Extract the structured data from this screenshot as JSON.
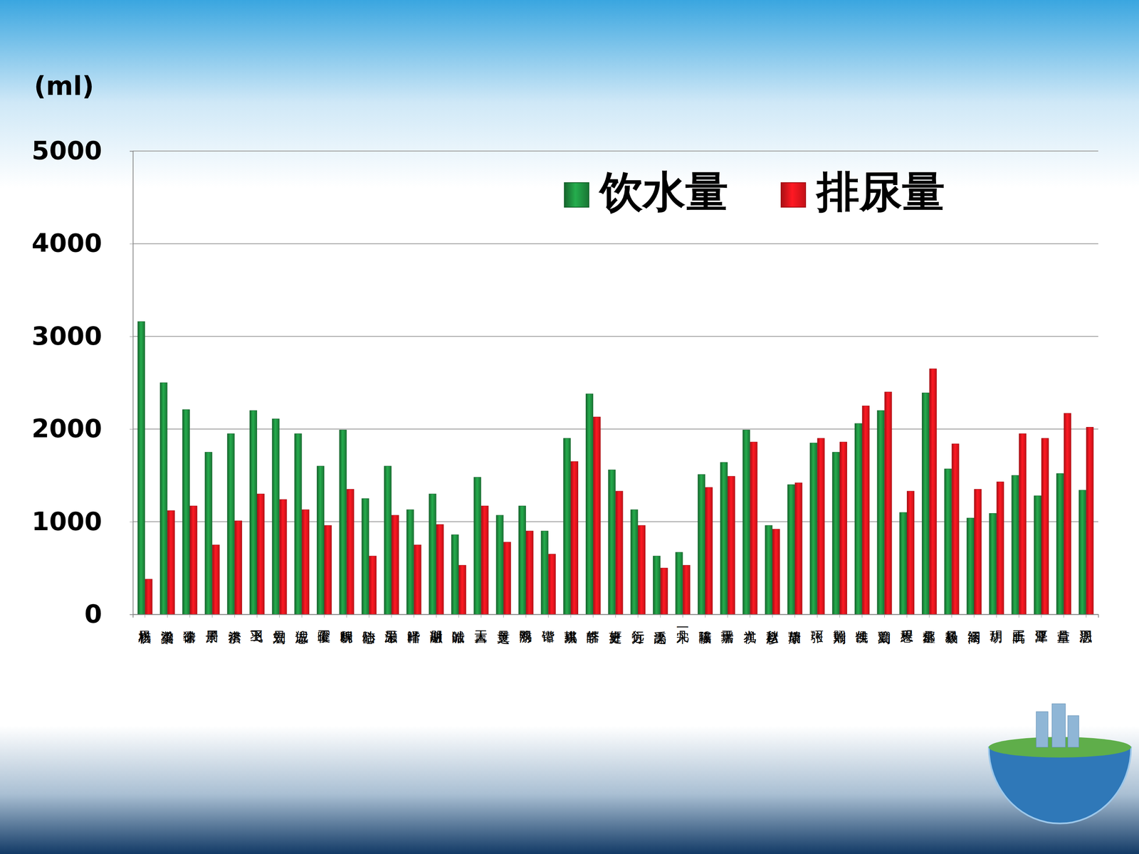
{
  "chart_data": {
    "type": "bar",
    "y_label": "(ml)",
    "categories": [
      "杨祺恩",
      "梁瀚祺",
      "徐诺非",
      "周子景",
      "李治祺",
      "王飞羽",
      "刘昱宏",
      "倪志诚",
      "王曜俊",
      "魏昕桐",
      "陆心怡",
      "朱思灏",
      "叶泽楷",
      "谢朋融",
      "叶皓诚",
      "王吉人",
      "黄昱之",
      "游双鸣",
      "谭锴",
      "姚嘉琪",
      "李皓轩",
      "史庭轩",
      "方行远",
      "滦之禹",
      "宋一凡",
      "陈瑞祺",
      "于嘉瑞",
      "尤祺",
      "赵秋彦",
      "胡瑞康",
      "张珂",
      "刘照瑞",
      "侯佳凯",
      "刘瑜凝",
      "程天恩",
      "郁承鑫",
      "杨毅晨",
      "高绍涵",
      "胡玥",
      "王禹昕",
      "覃泽亚",
      "吕卓萱",
      "沃思羽"
    ],
    "series": [
      {
        "name": "饮水量",
        "color": "#1e8c3e",
        "values": [
          3160,
          2500,
          2210,
          1750,
          1950,
          2200,
          2110,
          1950,
          1600,
          1990,
          1250,
          1600,
          1130,
          1300,
          860,
          1480,
          1070,
          1170,
          900,
          1900,
          2380,
          1560,
          1130,
          630,
          670,
          1510,
          1640,
          1990,
          960,
          1400,
          1850,
          1750,
          2060,
          2200,
          1100,
          2390,
          1570,
          1040,
          1090,
          1500,
          1280,
          1520,
          1340
        ]
      },
      {
        "name": "排尿量",
        "color": "#e8141c",
        "values": [
          380,
          1120,
          1170,
          750,
          1010,
          1300,
          1240,
          1130,
          960,
          1350,
          630,
          1070,
          750,
          970,
          530,
          1170,
          780,
          900,
          650,
          1650,
          2130,
          1330,
          960,
          500,
          530,
          1370,
          1490,
          1860,
          920,
          1420,
          1900,
          1860,
          2250,
          2400,
          1330,
          2650,
          1840,
          1350,
          1430,
          1950,
          1900,
          2170,
          2020
        ]
      }
    ],
    "ylim": [
      0,
      5000
    ],
    "yticks": [
      0,
      1000,
      2000,
      3000,
      4000,
      5000
    ],
    "grid": true,
    "legend": "top-right"
  }
}
